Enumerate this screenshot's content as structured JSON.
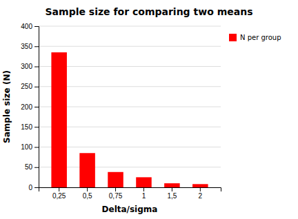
{
  "chart_data": {
    "type": "bar",
    "title": "Sample size for comparing two means",
    "xlabel": "Delta/sigma",
    "ylabel": "Sample size (N)",
    "categories": [
      "0,25",
      "0,5",
      "0,75",
      "1",
      "1,5",
      "2"
    ],
    "series": [
      {
        "name": "N per group",
        "color": "#FF0000",
        "values": [
          335,
          85,
          38,
          25,
          10,
          8
        ]
      }
    ],
    "ylim": [
      0,
      400
    ],
    "yticks": [
      0,
      50,
      100,
      150,
      200,
      250,
      300,
      350,
      400
    ],
    "grid": true,
    "legend": "right"
  }
}
